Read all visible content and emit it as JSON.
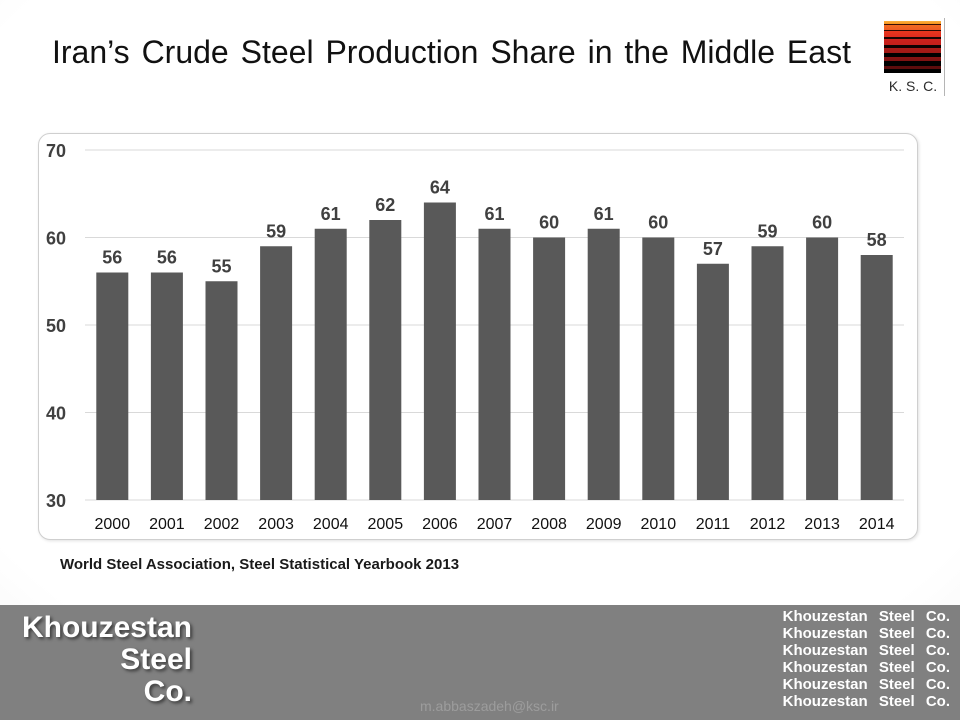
{
  "chart_data": {
    "type": "bar",
    "title": "Iran’s Crude Steel Production Share in the Middle East",
    "categories": [
      "2000",
      "2001",
      "2002",
      "2003",
      "2004",
      "2005",
      "2006",
      "2007",
      "2008",
      "2009",
      "2010",
      "2011",
      "2012",
      "2013",
      "2014"
    ],
    "values": [
      56,
      56,
      55,
      59,
      61,
      62,
      64,
      61,
      60,
      61,
      60,
      57,
      59,
      60,
      58
    ],
    "ylim": [
      30,
      70
    ],
    "yticks": [
      70,
      60,
      50,
      40,
      30
    ],
    "grid": true,
    "data_labels": true,
    "source": "World Steel Association, Steel Statistical Yearbook 2013"
  },
  "logo": {
    "text": "K. S. C."
  },
  "footer": {
    "company_name_lines": [
      "Khouzestan",
      "Steel",
      "Co."
    ],
    "repeated_name_lines": [
      "Khouzestan Steel Co.",
      "Khouzestan Steel Co.",
      "Khouzestan Steel Co.",
      "Khouzestan Steel Co.",
      "Khouzestan Steel Co.",
      "Khouzestan Steel Co."
    ],
    "email": "m.abbaszadeh@ksc.ir"
  },
  "colors": {
    "bar": "#595959",
    "gridline": "#d9d9d9",
    "label": "#404040",
    "footer_background": "#808080"
  }
}
